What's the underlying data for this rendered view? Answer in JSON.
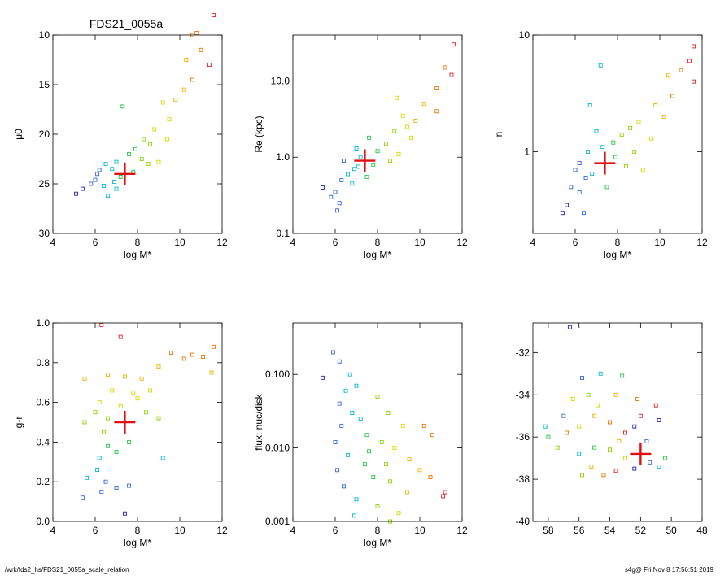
{
  "figure": {
    "title": "FDS21_0055a",
    "footer_left": "/wrk/fds2_hs/FDS21_0055a_scale_relation",
    "footer_right": "s4g@  Fri Nov  8 17:56:51 2019"
  },
  "chart_data": [
    {
      "id": "mu0",
      "type": "scatter",
      "xlabel": "log M*",
      "ylabel": "μ0",
      "xlim": [
        4,
        12
      ],
      "ylim": [
        30,
        10
      ],
      "xticks": [
        "4",
        "6",
        "8",
        "10",
        "12"
      ],
      "yticks": [
        "10",
        "15",
        "20",
        "25",
        "30"
      ],
      "highlight": {
        "x": 7.4,
        "y": 24.0
      },
      "sample_points": [
        {
          "x": 11.6,
          "y": 8.0
        },
        {
          "x": 10.8,
          "y": 9.8
        },
        {
          "x": 10.6,
          "y": 10.0
        },
        {
          "x": 11.0,
          "y": 11.5
        },
        {
          "x": 10.3,
          "y": 12.5
        },
        {
          "x": 11.4,
          "y": 13.0
        },
        {
          "x": 10.6,
          "y": 14.5
        },
        {
          "x": 10.2,
          "y": 15.5
        },
        {
          "x": 9.8,
          "y": 16.5
        },
        {
          "x": 9.2,
          "y": 16.8
        },
        {
          "x": 7.3,
          "y": 17.2
        },
        {
          "x": 9.5,
          "y": 18.5
        },
        {
          "x": 8.8,
          "y": 19.5
        },
        {
          "x": 8.3,
          "y": 20.5
        },
        {
          "x": 8.6,
          "y": 21.0
        },
        {
          "x": 7.9,
          "y": 21.5
        },
        {
          "x": 7.6,
          "y": 22.0
        },
        {
          "x": 8.2,
          "y": 22.5
        },
        {
          "x": 9.0,
          "y": 22.8
        },
        {
          "x": 7.0,
          "y": 22.8
        },
        {
          "x": 6.5,
          "y": 23.0
        },
        {
          "x": 6.8,
          "y": 23.5
        },
        {
          "x": 6.1,
          "y": 24.0
        },
        {
          "x": 7.2,
          "y": 24.3
        },
        {
          "x": 6.0,
          "y": 24.6
        },
        {
          "x": 5.8,
          "y": 25.0
        },
        {
          "x": 6.4,
          "y": 25.2
        },
        {
          "x": 7.0,
          "y": 25.5
        },
        {
          "x": 5.4,
          "y": 25.5
        },
        {
          "x": 5.1,
          "y": 26.0
        },
        {
          "x": 6.6,
          "y": 26.2
        },
        {
          "x": 7.8,
          "y": 23.8
        },
        {
          "x": 8.5,
          "y": 23.0
        },
        {
          "x": 9.4,
          "y": 20.5
        },
        {
          "x": 6.2,
          "y": 23.6
        },
        {
          "x": 6.9,
          "y": 24.8
        }
      ]
    },
    {
      "id": "re",
      "type": "scatter",
      "xlabel": "log M*",
      "ylabel": "Re (kpc)",
      "yscale": "log",
      "xlim": [
        4,
        12
      ],
      "ylim": [
        0.1,
        40
      ],
      "xticks": [
        "4",
        "6",
        "8",
        "10",
        "12"
      ],
      "yticks": [
        "0.1",
        "1.0",
        "10.0"
      ],
      "highlight": {
        "x": 7.4,
        "y": 0.9
      },
      "sample_points": [
        {
          "x": 11.6,
          "y": 30
        },
        {
          "x": 11.2,
          "y": 15
        },
        {
          "x": 11.5,
          "y": 12
        },
        {
          "x": 10.8,
          "y": 8
        },
        {
          "x": 10.2,
          "y": 5
        },
        {
          "x": 10.8,
          "y": 4
        },
        {
          "x": 9.8,
          "y": 3
        },
        {
          "x": 9.2,
          "y": 3.5
        },
        {
          "x": 8.8,
          "y": 2.2
        },
        {
          "x": 9.6,
          "y": 1.8
        },
        {
          "x": 8.4,
          "y": 1.5
        },
        {
          "x": 8.0,
          "y": 1.2
        },
        {
          "x": 7.6,
          "y": 1.8
        },
        {
          "x": 7.8,
          "y": 0.8
        },
        {
          "x": 7.2,
          "y": 1.0
        },
        {
          "x": 6.9,
          "y": 0.7
        },
        {
          "x": 6.6,
          "y": 0.6
        },
        {
          "x": 6.3,
          "y": 0.5
        },
        {
          "x": 6.0,
          "y": 0.35
        },
        {
          "x": 5.8,
          "y": 0.3
        },
        {
          "x": 6.2,
          "y": 0.25
        },
        {
          "x": 5.4,
          "y": 0.4
        },
        {
          "x": 6.8,
          "y": 0.45
        },
        {
          "x": 7.0,
          "y": 1.3
        },
        {
          "x": 8.6,
          "y": 0.9
        },
        {
          "x": 9.0,
          "y": 1.1
        },
        {
          "x": 6.4,
          "y": 0.9
        },
        {
          "x": 7.5,
          "y": 0.55
        },
        {
          "x": 8.9,
          "y": 6.0
        },
        {
          "x": 9.4,
          "y": 2.5
        },
        {
          "x": 6.1,
          "y": 0.2
        },
        {
          "x": 7.1,
          "y": 0.75
        }
      ]
    },
    {
      "id": "n",
      "type": "scatter",
      "xlabel": "log M*",
      "ylabel": "n",
      "yscale": "log",
      "xlim": [
        4,
        12
      ],
      "ylim": [
        0.2,
        10
      ],
      "xticks": [
        "4",
        "6",
        "8",
        "10",
        "12"
      ],
      "yticks": [
        "1",
        "10"
      ],
      "highlight": {
        "x": 7.4,
        "y": 0.8
      },
      "sample_points": [
        {
          "x": 11.6,
          "y": 8.0
        },
        {
          "x": 11.4,
          "y": 6.0
        },
        {
          "x": 11.0,
          "y": 5.0
        },
        {
          "x": 10.4,
          "y": 4.5
        },
        {
          "x": 11.6,
          "y": 4.0
        },
        {
          "x": 10.6,
          "y": 3.0
        },
        {
          "x": 9.8,
          "y": 2.5
        },
        {
          "x": 10.2,
          "y": 2.0
        },
        {
          "x": 9.0,
          "y": 1.8
        },
        {
          "x": 7.2,
          "y": 5.5
        },
        {
          "x": 8.2,
          "y": 1.4
        },
        {
          "x": 7.8,
          "y": 1.2
        },
        {
          "x": 8.6,
          "y": 1.6
        },
        {
          "x": 7.0,
          "y": 1.5
        },
        {
          "x": 6.6,
          "y": 1.0
        },
        {
          "x": 6.2,
          "y": 0.8
        },
        {
          "x": 6.0,
          "y": 0.7
        },
        {
          "x": 6.8,
          "y": 0.65
        },
        {
          "x": 5.8,
          "y": 0.5
        },
        {
          "x": 6.2,
          "y": 0.45
        },
        {
          "x": 5.4,
          "y": 0.3
        },
        {
          "x": 5.6,
          "y": 0.35
        },
        {
          "x": 6.4,
          "y": 0.3
        },
        {
          "x": 7.5,
          "y": 0.5
        },
        {
          "x": 8.8,
          "y": 1.0
        },
        {
          "x": 9.2,
          "y": 0.7
        },
        {
          "x": 7.9,
          "y": 0.9
        },
        {
          "x": 6.7,
          "y": 2.5
        },
        {
          "x": 7.3,
          "y": 1.1
        },
        {
          "x": 8.4,
          "y": 0.75
        },
        {
          "x": 6.5,
          "y": 0.6
        },
        {
          "x": 9.6,
          "y": 1.3
        }
      ]
    },
    {
      "id": "gr",
      "type": "scatter",
      "xlabel": "log M*",
      "ylabel": "g-r",
      "xlim": [
        4,
        12
      ],
      "ylim": [
        0.0,
        1.0
      ],
      "xticks": [
        "4",
        "6",
        "8",
        "10",
        "12"
      ],
      "yticks": [
        "0.0",
        "0.2",
        "0.4",
        "0.6",
        "0.8",
        "1.0"
      ],
      "highlight": {
        "x": 7.4,
        "y": 0.5
      },
      "sample_points": [
        {
          "x": 6.3,
          "y": 0.99
        },
        {
          "x": 7.2,
          "y": 0.93
        },
        {
          "x": 9.6,
          "y": 0.85
        },
        {
          "x": 10.6,
          "y": 0.84
        },
        {
          "x": 11.1,
          "y": 0.83
        },
        {
          "x": 11.6,
          "y": 0.88
        },
        {
          "x": 10.2,
          "y": 0.82
        },
        {
          "x": 11.5,
          "y": 0.75
        },
        {
          "x": 9.0,
          "y": 0.78
        },
        {
          "x": 8.2,
          "y": 0.72
        },
        {
          "x": 7.4,
          "y": 0.73
        },
        {
          "x": 6.6,
          "y": 0.74
        },
        {
          "x": 5.5,
          "y": 0.72
        },
        {
          "x": 6.8,
          "y": 0.66
        },
        {
          "x": 7.8,
          "y": 0.65
        },
        {
          "x": 8.6,
          "y": 0.66
        },
        {
          "x": 6.2,
          "y": 0.6
        },
        {
          "x": 7.2,
          "y": 0.58
        },
        {
          "x": 6.0,
          "y": 0.55
        },
        {
          "x": 6.6,
          "y": 0.52
        },
        {
          "x": 5.5,
          "y": 0.5
        },
        {
          "x": 8.4,
          "y": 0.55
        },
        {
          "x": 9.0,
          "y": 0.52
        },
        {
          "x": 6.4,
          "y": 0.45
        },
        {
          "x": 6.6,
          "y": 0.38
        },
        {
          "x": 7.0,
          "y": 0.35
        },
        {
          "x": 7.6,
          "y": 0.4
        },
        {
          "x": 6.2,
          "y": 0.32
        },
        {
          "x": 6.1,
          "y": 0.26
        },
        {
          "x": 5.6,
          "y": 0.22
        },
        {
          "x": 6.5,
          "y": 0.2
        },
        {
          "x": 6.3,
          "y": 0.15
        },
        {
          "x": 7.0,
          "y": 0.17
        },
        {
          "x": 7.6,
          "y": 0.18
        },
        {
          "x": 5.4,
          "y": 0.12
        },
        {
          "x": 7.4,
          "y": 0.04
        },
        {
          "x": 9.2,
          "y": 0.32
        },
        {
          "x": 8.0,
          "y": 0.62
        }
      ]
    },
    {
      "id": "flux",
      "type": "scatter",
      "xlabel": "log M*",
      "ylabel": "flux: nuc/disk",
      "yscale": "log",
      "xlim": [
        4,
        12
      ],
      "ylim": [
        0.001,
        0.5
      ],
      "xticks": [
        "4",
        "6",
        "8",
        "10",
        "12"
      ],
      "yticks": [
        "0.001",
        "0.010",
        "0.100"
      ],
      "sample_points": [
        {
          "x": 5.9,
          "y": 0.2
        },
        {
          "x": 6.2,
          "y": 0.15
        },
        {
          "x": 6.7,
          "y": 0.1
        },
        {
          "x": 5.4,
          "y": 0.09
        },
        {
          "x": 6.5,
          "y": 0.06
        },
        {
          "x": 7.0,
          "y": 0.07
        },
        {
          "x": 8.0,
          "y": 0.05
        },
        {
          "x": 6.2,
          "y": 0.04
        },
        {
          "x": 6.8,
          "y": 0.03
        },
        {
          "x": 8.5,
          "y": 0.03
        },
        {
          "x": 7.2,
          "y": 0.025
        },
        {
          "x": 9.2,
          "y": 0.02
        },
        {
          "x": 10.2,
          "y": 0.02
        },
        {
          "x": 10.6,
          "y": 0.015
        },
        {
          "x": 6.3,
          "y": 0.02
        },
        {
          "x": 7.5,
          "y": 0.015
        },
        {
          "x": 6.0,
          "y": 0.012
        },
        {
          "x": 8.2,
          "y": 0.012
        },
        {
          "x": 8.8,
          "y": 0.01
        },
        {
          "x": 6.6,
          "y": 0.008
        },
        {
          "x": 7.4,
          "y": 0.006
        },
        {
          "x": 9.5,
          "y": 0.007
        },
        {
          "x": 10.0,
          "y": 0.005
        },
        {
          "x": 6.1,
          "y": 0.005
        },
        {
          "x": 7.8,
          "y": 0.004
        },
        {
          "x": 8.6,
          "y": 0.0035
        },
        {
          "x": 6.4,
          "y": 0.003
        },
        {
          "x": 9.4,
          "y": 0.0025
        },
        {
          "x": 10.5,
          "y": 0.004
        },
        {
          "x": 11.1,
          "y": 0.0022
        },
        {
          "x": 11.2,
          "y": 0.0025
        },
        {
          "x": 7.0,
          "y": 0.002
        },
        {
          "x": 8.0,
          "y": 0.0016
        },
        {
          "x": 9.0,
          "y": 0.0013
        },
        {
          "x": 6.9,
          "y": 0.0012
        },
        {
          "x": 8.6,
          "y": 0.001
        },
        {
          "x": 7.6,
          "y": 0.009
        },
        {
          "x": 8.4,
          "y": 0.006
        }
      ]
    },
    {
      "id": "coords",
      "type": "scatter",
      "xlim": [
        59,
        48
      ],
      "ylim": [
        -40,
        -30.6
      ],
      "xticks": [
        "58",
        "56",
        "54",
        "52",
        "50",
        "48"
      ],
      "yticks": [
        "-40",
        "-38",
        "-36",
        "-34",
        "-32"
      ],
      "highlight": {
        "x": 52.0,
        "y": -36.8
      },
      "sample_points": [
        {
          "x": 56.6,
          "y": -30.8
        },
        {
          "x": 55.8,
          "y": -33.2
        },
        {
          "x": 54.6,
          "y": -33.0
        },
        {
          "x": 53.2,
          "y": -33.1
        },
        {
          "x": 55.4,
          "y": -34.0
        },
        {
          "x": 56.4,
          "y": -34.2
        },
        {
          "x": 53.6,
          "y": -34.0
        },
        {
          "x": 52.2,
          "y": -34.2
        },
        {
          "x": 51.0,
          "y": -34.5
        },
        {
          "x": 50.8,
          "y": -35.2
        },
        {
          "x": 57.0,
          "y": -35.0
        },
        {
          "x": 58.2,
          "y": -35.5
        },
        {
          "x": 58.0,
          "y": -36.0
        },
        {
          "x": 57.4,
          "y": -36.5
        },
        {
          "x": 56.0,
          "y": -35.5
        },
        {
          "x": 55.0,
          "y": -35.0
        },
        {
          "x": 54.0,
          "y": -35.3
        },
        {
          "x": 53.0,
          "y": -35.8
        },
        {
          "x": 52.4,
          "y": -35.5
        },
        {
          "x": 51.6,
          "y": -36.2
        },
        {
          "x": 56.0,
          "y": -36.8
        },
        {
          "x": 55.0,
          "y": -36.5
        },
        {
          "x": 54.0,
          "y": -36.6
        },
        {
          "x": 53.0,
          "y": -37.0
        },
        {
          "x": 55.2,
          "y": -37.4
        },
        {
          "x": 54.4,
          "y": -37.8
        },
        {
          "x": 53.6,
          "y": -37.6
        },
        {
          "x": 52.4,
          "y": -37.5
        },
        {
          "x": 51.4,
          "y": -37.2
        },
        {
          "x": 50.8,
          "y": -37.4
        },
        {
          "x": 50.4,
          "y": -37.0
        },
        {
          "x": 55.8,
          "y": -37.8
        },
        {
          "x": 54.8,
          "y": -34.5
        },
        {
          "x": 53.4,
          "y": -36.2
        },
        {
          "x": 56.8,
          "y": -35.8
        },
        {
          "x": 52.0,
          "y": -35.0
        }
      ]
    }
  ]
}
